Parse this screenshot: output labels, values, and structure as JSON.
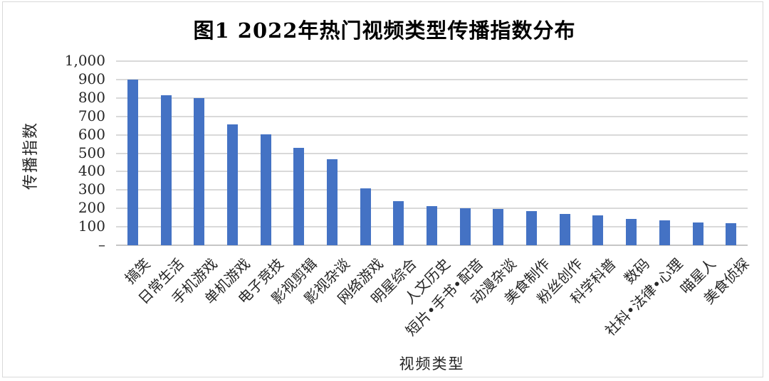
{
  "chart_data": {
    "type": "bar",
    "title": "图1 2022年热门视频类型传播指数分布",
    "xlabel": "视频类型",
    "ylabel": "传播指数",
    "categories": [
      "搞笑",
      "日常生活",
      "手机游戏",
      "单机游戏",
      "电子竞技",
      "影视剪辑",
      "影视杂谈",
      "网络游戏",
      "明星综合",
      "人文历史",
      "短片•手书•配音",
      "动漫杂谈",
      "美食制作",
      "粉丝创作",
      "科学科普",
      "数码",
      "社科•法律•心理",
      "喵星人",
      "美食侦探"
    ],
    "values": [
      900,
      813,
      800,
      655,
      604,
      528,
      469,
      310,
      239,
      212,
      201,
      198,
      186,
      170,
      164,
      143,
      134,
      122,
      121
    ],
    "ylim": [
      0,
      1000
    ],
    "ytick_step": 100,
    "ytick_labels_top_to_bottom": [
      "1,000",
      "900",
      "800",
      "700",
      "600",
      "500",
      "400",
      "300",
      "200",
      "100",
      "–"
    ],
    "grid": "horizontal",
    "legend": "none",
    "colors": {
      "bar": "#4472c4",
      "gridline": "#d9d9d9",
      "axis_line": "#c6c6c6",
      "text": "#262626",
      "title_text": "#000000",
      "frame_border": "#d9d9d9",
      "background": "#ffffff"
    }
  }
}
